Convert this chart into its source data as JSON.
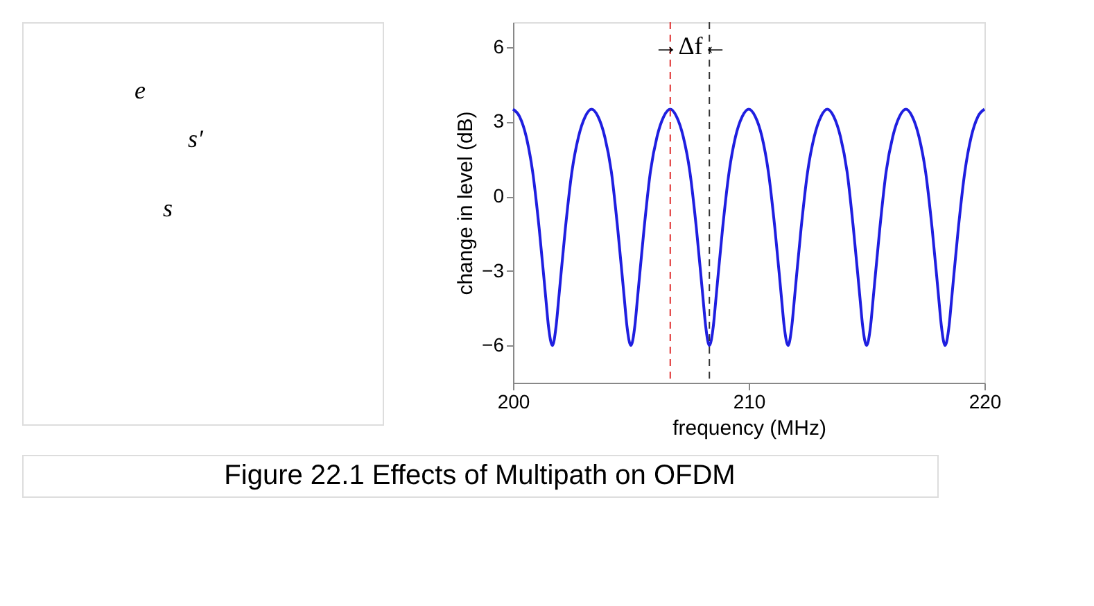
{
  "chart_data": [
    {
      "type": "other",
      "annotations": [
        "e",
        "s′",
        "s"
      ]
    },
    {
      "type": "line",
      "xlabel": "frequency (MHz)",
      "ylabel": "change in level (dB)",
      "xlim": [
        200,
        220
      ],
      "xticks": [
        200,
        210,
        220
      ],
      "ylim": [
        -7.5,
        7
      ],
      "yticks": [
        -6,
        -3,
        0,
        3,
        6
      ],
      "grid": false,
      "line_style": "solid",
      "marker": "none",
      "x": [
        200,
        200.28,
        200.56,
        200.83,
        201.11,
        201.39,
        201.5,
        201.67,
        201.83,
        201.94,
        202.22,
        202.5,
        202.78,
        203.06,
        203.33,
        203.61,
        203.89,
        204.17,
        204.44,
        204.72,
        204.83,
        205,
        205.17,
        205.28,
        205.56,
        205.83,
        206.11,
        206.39,
        206.67,
        206.94,
        207.22,
        207.5,
        207.78,
        208.06,
        208.17,
        208.33,
        208.5,
        208.61,
        208.89,
        209.17,
        209.44,
        209.72,
        210,
        210.28,
        210.56,
        210.83,
        211.11,
        211.39,
        211.5,
        211.67,
        211.83,
        211.94,
        212.22,
        212.5,
        212.78,
        213.06,
        213.33,
        213.61,
        213.89,
        214.17,
        214.44,
        214.72,
        214.83,
        215,
        215.17,
        215.28,
        215.56,
        215.83,
        216.11,
        216.39,
        216.67,
        216.94,
        217.22,
        217.5,
        217.78,
        218.06,
        218.17,
        218.33,
        218.5,
        218.61,
        218.89,
        219.17,
        219.44,
        219.72,
        220
      ],
      "series": [
        {
          "color": "#1f1fe0",
          "values": [
            3.5,
            3.2,
            2.4,
            1.0,
            -1.3,
            -4.1,
            -5.2,
            -6.0,
            -5.2,
            -4.1,
            -1.3,
            1.0,
            2.4,
            3.2,
            3.5,
            3.2,
            2.4,
            1.0,
            -1.3,
            -4.1,
            -5.2,
            -6.0,
            -5.2,
            -4.1,
            -1.3,
            1.0,
            2.4,
            3.2,
            3.5,
            3.2,
            2.4,
            1.0,
            -1.3,
            -4.1,
            -5.2,
            -6.0,
            -5.2,
            -4.1,
            -1.3,
            1.0,
            2.4,
            3.2,
            3.5,
            3.2,
            2.4,
            1.0,
            -1.3,
            -4.1,
            -5.2,
            -6.0,
            -5.2,
            -4.1,
            -1.3,
            1.0,
            2.4,
            3.2,
            3.5,
            3.2,
            2.4,
            1.0,
            -1.3,
            -4.1,
            -5.2,
            -6.0,
            -5.2,
            -4.1,
            -1.3,
            1.0,
            2.4,
            3.2,
            3.5,
            3.2,
            2.4,
            1.0,
            -1.3,
            -4.1,
            -5.2,
            -6.0,
            -5.2,
            -4.1,
            -1.3,
            1.0,
            2.4,
            3.2,
            3.5
          ]
        }
      ],
      "ref_lines": [
        {
          "axis": "x",
          "value": 206.67,
          "color": "#e03030",
          "line_style": "dashed"
        },
        {
          "axis": "x",
          "value": 208.33,
          "color": "#333333",
          "line_style": "dashed"
        }
      ],
      "annotations": [
        "→Δf←",
        "Figure 22.1    Effects of Multipath on OFDM"
      ]
    }
  ]
}
